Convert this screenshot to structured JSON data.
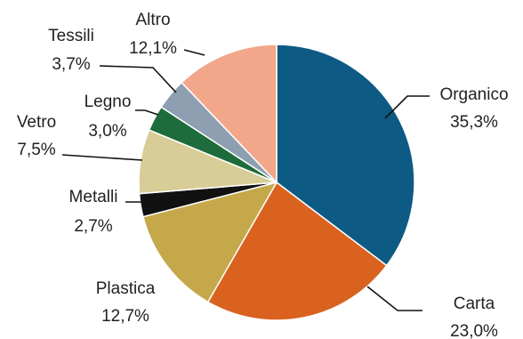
{
  "chart_data": {
    "type": "pie",
    "title": "",
    "start_angle_deg": 0,
    "direction": "clockwise",
    "legend": "none",
    "slices": [
      {
        "name": "Organico",
        "value": 35.3,
        "label": "35,3%",
        "color": "#0d5a84"
      },
      {
        "name": "Carta",
        "value": 23.0,
        "label": "23,0%",
        "color": "#d9621f"
      },
      {
        "name": "Plastica",
        "value": 12.7,
        "label": "12,7%",
        "color": "#c4a84a"
      },
      {
        "name": "Metalli",
        "value": 2.7,
        "label": "2,7%",
        "color": "#111111"
      },
      {
        "name": "Vetro",
        "value": 7.5,
        "label": "7,5%",
        "color": "#d8cd96"
      },
      {
        "name": "Legno",
        "value": 3.0,
        "label": "3,0%",
        "color": "#1e6b3b"
      },
      {
        "name": "Tessili",
        "value": 3.7,
        "label": "3,7%",
        "color": "#8d9fb1"
      },
      {
        "name": "Altro",
        "value": 12.1,
        "label": "12,1%",
        "color": "#f2a78a"
      }
    ]
  }
}
